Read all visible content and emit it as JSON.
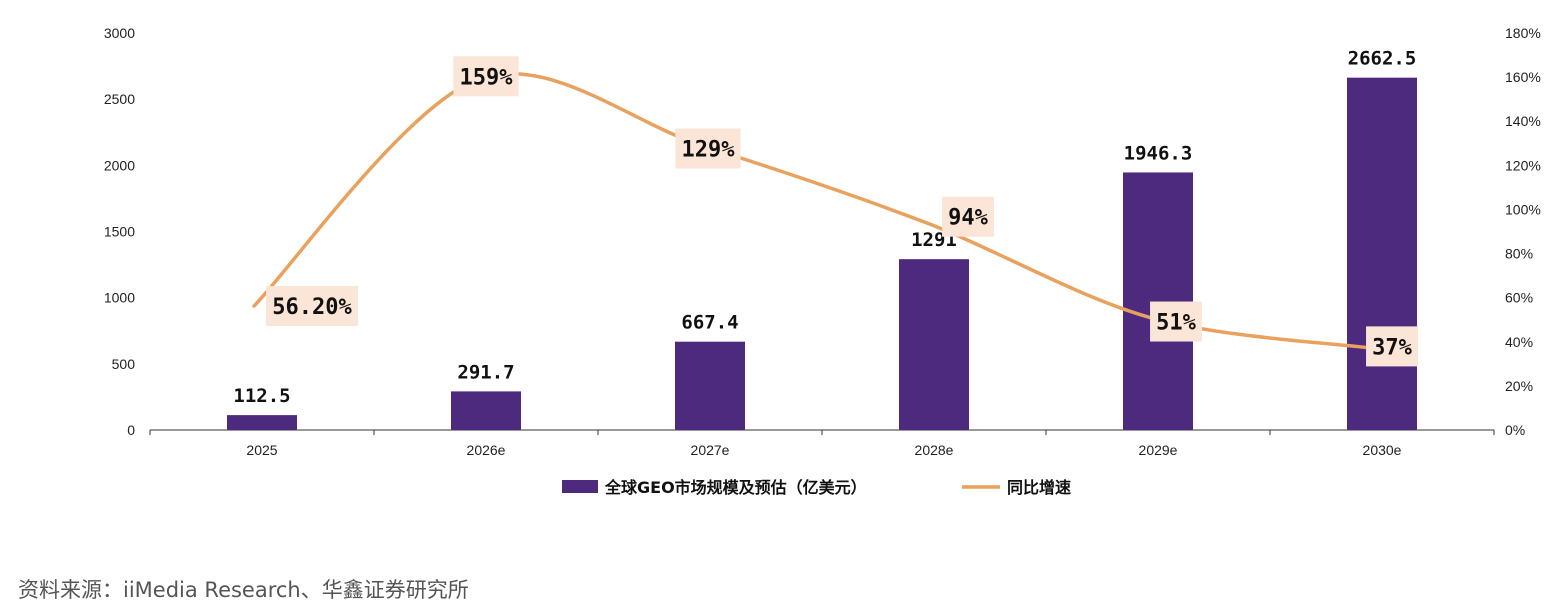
{
  "chart_data": {
    "type": "bar",
    "categories": [
      "2025",
      "2026e",
      "2027e",
      "2028e",
      "2029e",
      "2030e"
    ],
    "series": [
      {
        "name": "全球GEO市场规模及预估（亿美元）",
        "kind": "bar",
        "axis": "left",
        "values": [
          112.5,
          291.7,
          667.4,
          1291,
          1946.3,
          2662.5
        ],
        "labels": [
          "112.5",
          "291.7",
          "667.4",
          "1291",
          "1946.3",
          "2662.5"
        ],
        "color": "#4e2a7f"
      },
      {
        "name": "同比增速",
        "kind": "line",
        "axis": "right",
        "values": [
          56.2,
          159,
          129,
          94,
          51,
          37
        ],
        "labels": [
          "56.20%",
          "159%",
          "129%",
          "94%",
          "51%",
          "37%"
        ],
        "color": "#e9a15e"
      }
    ],
    "y_left": {
      "ylim": [
        0,
        3000
      ],
      "ticks": [
        "0",
        "500",
        "1000",
        "1500",
        "2000",
        "2500",
        "3000"
      ]
    },
    "y_right": {
      "ylim": [
        0,
        180
      ],
      "ticks": [
        "0%",
        "20%",
        "40%",
        "60%",
        "80%",
        "100%",
        "120%",
        "140%",
        "160%",
        "180%"
      ]
    },
    "grid": false,
    "legend": "bottom-center",
    "label_box_color": "#fbe5d6"
  },
  "source_note": "资料来源：iiMedia Research、华鑫证券研究所"
}
